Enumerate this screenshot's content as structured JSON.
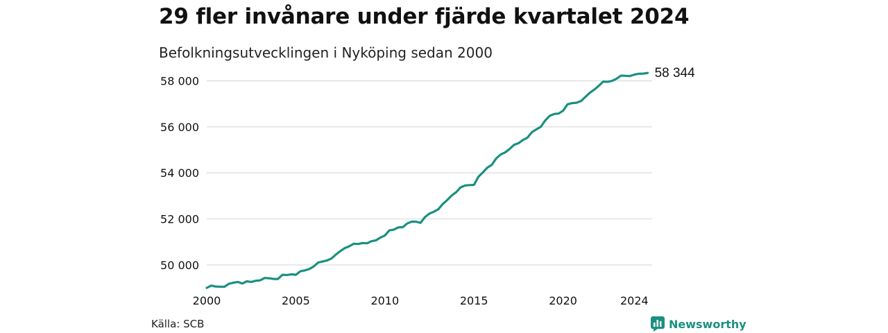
{
  "colors": {
    "line": "#1a9080",
    "grid": "#dddddd",
    "brand": "#1a9080"
  },
  "header": {
    "title": "29 fler invånare under fjärde kvartalet 2024",
    "subtitle": "Befolkningsutvecklingen i Nyköping sedan 2000"
  },
  "footer": {
    "source": "Källa: SCB",
    "brand": "Newsworthy",
    "brand_icon": "newsworthy-logo-icon"
  },
  "chart_data": {
    "type": "line",
    "title": "29 fler invånare under fjärde kvartalet 2024",
    "subtitle": "Befolkningsutvecklingen i Nyköping sedan 2000",
    "xlabel": "",
    "ylabel": "",
    "xlim": [
      2000,
      2025
    ],
    "ylim": [
      49000,
      58500
    ],
    "x_ticks": [
      2000,
      2005,
      2010,
      2015,
      2020,
      2024
    ],
    "x_tick_labels": [
      "2000",
      "2005",
      "2010",
      "2015",
      "2020",
      "2024"
    ],
    "y_ticks": [
      50000,
      52000,
      54000,
      56000,
      58000
    ],
    "y_tick_labels": [
      "50 000",
      "52 000",
      "54 000",
      "56 000",
      "58 000"
    ],
    "grid": "horizontal",
    "end_label": "58 344",
    "series": [
      {
        "x": [
          2000.0,
          2000.25,
          2000.5,
          2000.75,
          2001.0,
          2001.25,
          2001.5,
          2001.75,
          2002.0,
          2002.25,
          2002.5,
          2002.75,
          2003.0,
          2003.25,
          2003.5,
          2003.75,
          2004.0,
          2004.25,
          2004.5,
          2004.75,
          2005.0,
          2005.25,
          2005.5,
          2005.75,
          2006.0,
          2006.25,
          2006.5,
          2006.75,
          2007.0,
          2007.25,
          2007.5,
          2007.75,
          2008.0,
          2008.25,
          2008.5,
          2008.75,
          2009.0,
          2009.25,
          2009.5,
          2009.75,
          2010.0,
          2010.25,
          2010.5,
          2010.75,
          2011.0,
          2011.25,
          2011.5,
          2011.75,
          2012.0,
          2012.25,
          2012.5,
          2012.75,
          2013.0,
          2013.25,
          2013.5,
          2013.75,
          2014.0,
          2014.25,
          2014.5,
          2014.75,
          2015.0,
          2015.25,
          2015.5,
          2015.75,
          2016.0,
          2016.25,
          2016.5,
          2016.75,
          2017.0,
          2017.25,
          2017.5,
          2017.75,
          2018.0,
          2018.25,
          2018.5,
          2018.75,
          2019.0,
          2019.25,
          2019.5,
          2019.75,
          2020.0,
          2020.25,
          2020.5,
          2020.75,
          2021.0,
          2021.25,
          2021.5,
          2021.75,
          2022.0,
          2022.25,
          2022.5,
          2022.75,
          2023.0,
          2023.25,
          2023.5,
          2023.75,
          2024.0,
          2024.25,
          2024.5,
          2024.75
        ],
        "values": [
          49000,
          49100,
          49060,
          49050,
          49050,
          49180,
          49230,
          49260,
          49190,
          49290,
          49260,
          49310,
          49330,
          49430,
          49420,
          49390,
          49390,
          49570,
          49560,
          49590,
          49570,
          49720,
          49760,
          49820,
          49930,
          50100,
          50150,
          50190,
          50280,
          50450,
          50600,
          50730,
          50810,
          50920,
          50910,
          50950,
          50940,
          51030,
          51070,
          51190,
          51280,
          51500,
          51530,
          51630,
          51640,
          51800,
          51880,
          51880,
          51830,
          52080,
          52230,
          52310,
          52420,
          52650,
          52820,
          53020,
          53160,
          53370,
          53450,
          53470,
          53480,
          53830,
          54020,
          54230,
          54350,
          54630,
          54800,
          54890,
          55040,
          55220,
          55290,
          55430,
          55530,
          55770,
          55890,
          56000,
          56280,
          56480,
          56560,
          56580,
          56700,
          56980,
          57030,
          57050,
          57120,
          57300,
          57480,
          57620,
          57780,
          57970,
          57960,
          58000,
          58090,
          58230,
          58220,
          58210,
          58270,
          58310,
          58315,
          58344
        ]
      }
    ]
  }
}
